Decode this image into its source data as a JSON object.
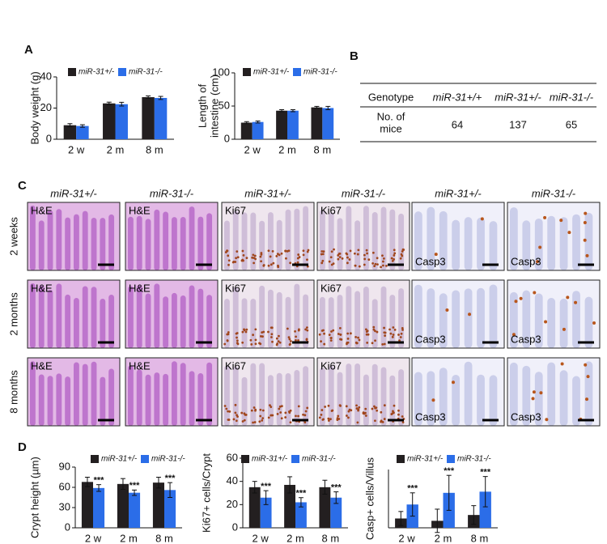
{
  "panel_labels": [
    "A",
    "B",
    "C",
    "D"
  ],
  "chart_data": [
    {
      "type": "bar",
      "ylabel": [
        "Body weight (g)"
      ],
      "categories": [
        "2 w",
        "2 m",
        "8 m"
      ],
      "series": [
        {
          "name": "miR-31+/-",
          "color": "#231f20",
          "values": [
            9,
            23,
            27
          ],
          "errors": [
            1,
            0.8,
            0.8
          ]
        },
        {
          "name": "miR-31-/-",
          "color": "#2b6de8",
          "values": [
            8.5,
            22.5,
            26.5
          ],
          "errors": [
            0.8,
            1.2,
            1
          ]
        }
      ],
      "ylim": [
        0,
        40
      ],
      "yticks": [
        0,
        20,
        40
      ]
    },
    {
      "type": "bar",
      "ylabel": [
        "Length of",
        "intestine (cm)"
      ],
      "categories": [
        "2 w",
        "2 m",
        "8 m"
      ],
      "series": [
        {
          "name": "miR-31+/-",
          "color": "#231f20",
          "values": [
            25,
            43,
            48
          ],
          "errors": [
            1.5,
            1.5,
            1.5
          ]
        },
        {
          "name": "miR-31-/-",
          "color": "#2b6de8",
          "values": [
            26,
            43,
            47
          ],
          "errors": [
            1.5,
            1.5,
            2.5
          ]
        }
      ],
      "ylim": [
        0,
        100
      ],
      "yticks": [
        0,
        50,
        100
      ]
    },
    {
      "type": "bar",
      "ylabel": [
        "Crypt height (µm)"
      ],
      "categories": [
        "2 w",
        "2 m",
        "8 m"
      ],
      "series": [
        {
          "name": "miR-31+/-",
          "color": "#231f20",
          "values": [
            68,
            65,
            67
          ],
          "errors": [
            7,
            8,
            8
          ]
        },
        {
          "name": "miR-31-/-",
          "color": "#2b6de8",
          "values": [
            59,
            52,
            56
          ],
          "errors": [
            5,
            4,
            11
          ]
        }
      ],
      "annotations": [
        "***",
        "***",
        "***"
      ],
      "ylim": [
        0,
        90
      ],
      "yticks": [
        0,
        30,
        60,
        90
      ]
    },
    {
      "type": "bar",
      "ylabel": [
        "Ki67+ cells/Crypt"
      ],
      "categories": [
        "2 w",
        "2 m",
        "8 m"
      ],
      "series": [
        {
          "name": "miR-31+/-",
          "color": "#231f20",
          "values": [
            35,
            37,
            35
          ],
          "errors": [
            5,
            7,
            6
          ]
        },
        {
          "name": "miR-31-/-",
          "color": "#2b6de8",
          "values": [
            26,
            22,
            26
          ],
          "errors": [
            6,
            4,
            5
          ]
        }
      ],
      "annotations": [
        "***",
        "***",
        "***"
      ],
      "ylim": [
        0,
        60
      ],
      "yticks": [
        0,
        20,
        40,
        60
      ]
    },
    {
      "type": "bar",
      "ylabel": [
        "Casp+ cells/Villus"
      ],
      "categories": [
        "2 w",
        "2 m",
        "8 m"
      ],
      "series": [
        {
          "name": "miR-31+/-",
          "color": "#231f20",
          "values": [
            0.8,
            0.6,
            1.1
          ],
          "errors": [
            0.6,
            1,
            0.8
          ]
        },
        {
          "name": "miR-31-/-",
          "color": "#2b6de8",
          "values": [
            2,
            3,
            3.1
          ],
          "errors": [
            1,
            1.5,
            1.3
          ]
        }
      ],
      "annotations": [
        "***",
        "***",
        "***"
      ],
      "ylim": [
        0,
        5
      ]
    }
  ],
  "table": {
    "header": [
      "Genotype",
      "miR-31+/+",
      "miR-31+/-",
      "miR-31-/-"
    ],
    "row_label": [
      "No. of",
      "mice"
    ],
    "values": [
      64,
      137,
      65
    ]
  },
  "histology": {
    "columns": [
      "miR-31+/-",
      "miR-31-/-",
      "miR-31+/-",
      "miR-31-/-",
      "miR-31+/-",
      "miR-31-/-"
    ],
    "stains": [
      "H&E",
      "H&E",
      "Ki67",
      "Ki67",
      "Casp3",
      "Casp3"
    ],
    "rows": [
      "2 weeks",
      "2 months",
      "8 months"
    ]
  }
}
